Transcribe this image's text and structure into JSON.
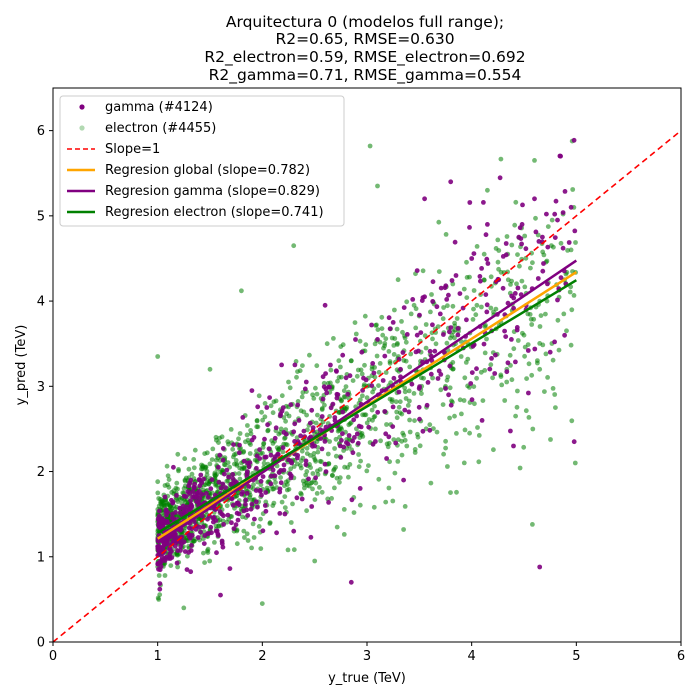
{
  "chart_data": {
    "type": "scatter",
    "title_lines": [
      "Arquitectura 0 (modelos full range);",
      "R2=0.65, RMSE=0.630",
      "R2_electron=0.59, RMSE_electron=0.692",
      "R2_gamma=0.71, RMSE_gamma=0.554"
    ],
    "xlabel": "y_true (TeV)",
    "ylabel": "y_pred (TeV)",
    "xlim": [
      0,
      6
    ],
    "ylim": [
      0,
      6.5
    ],
    "xticks": [
      "0",
      "1",
      "2",
      "3",
      "4",
      "5",
      "6"
    ],
    "yticks": [
      "0",
      "1",
      "2",
      "3",
      "4",
      "5",
      "6"
    ],
    "grid": false,
    "legend_position": "top-left",
    "series": [
      {
        "name": "gamma (#4124)",
        "kind": "scatter",
        "color": "#800080",
        "count": 4124,
        "alpha": 0.9
      },
      {
        "name": "electron (#4455)",
        "kind": "scatter",
        "color": "#008000",
        "count": 4455,
        "alpha": 0.3
      },
      {
        "name": "Slope=1",
        "kind": "line",
        "style": "dashed",
        "color": "#ff0000",
        "slope": 1,
        "intercept": 0,
        "x_range": [
          0,
          6
        ]
      },
      {
        "name": "Regresion global (slope=0.782)",
        "kind": "line",
        "color": "#ffa500",
        "slope": 0.782,
        "intercept": 0.43,
        "x_range": [
          1,
          5
        ]
      },
      {
        "name": "Regresion gamma (slope=0.829)",
        "kind": "line",
        "color": "#800080",
        "slope": 0.829,
        "intercept": 0.33,
        "x_range": [
          1,
          5
        ]
      },
      {
        "name": "Regresion electron (slope=0.741)",
        "kind": "line",
        "color": "#008000",
        "slope": 0.741,
        "intercept": 0.54,
        "x_range": [
          1,
          5
        ]
      }
    ],
    "scatter_sample": {
      "gamma": [
        [
          1.02,
          0.62
        ],
        [
          1.05,
          1.35
        ],
        [
          1.08,
          1.55
        ],
        [
          1.12,
          0.98
        ],
        [
          1.18,
          1.72
        ],
        [
          1.22,
          1.12
        ],
        [
          1.28,
          0.85
        ],
        [
          1.33,
          1.48
        ],
        [
          1.4,
          1.9
        ],
        [
          1.45,
          1.25
        ],
        [
          1.52,
          1.62
        ],
        [
          1.58,
          2.05
        ],
        [
          1.63,
          1.38
        ],
        [
          1.7,
          1.85
        ],
        [
          1.78,
          2.22
        ],
        [
          1.85,
          1.55
        ],
        [
          1.92,
          2.4
        ],
        [
          1.98,
          1.78
        ],
        [
          2.05,
          2.55
        ],
        [
          2.12,
          1.95
        ],
        [
          2.2,
          2.75
        ],
        [
          2.28,
          2.1
        ],
        [
          2.35,
          2.6
        ],
        [
          2.42,
          3.05
        ],
        [
          2.5,
          2.3
        ],
        [
          2.58,
          2.85
        ],
        [
          2.65,
          3.25
        ],
        [
          2.72,
          2.55
        ],
        [
          2.8,
          3.1
        ],
        [
          2.88,
          2.4
        ],
        [
          2.95,
          3.4
        ],
        [
          3.02,
          2.8
        ],
        [
          3.1,
          3.55
        ],
        [
          3.18,
          2.95
        ],
        [
          3.25,
          3.75
        ],
        [
          3.32,
          3.2
        ],
        [
          3.4,
          2.7
        ],
        [
          3.48,
          3.6
        ],
        [
          3.55,
          4.05
        ],
        [
          3.62,
          3.3
        ],
        [
          3.7,
          3.85
        ],
        [
          3.78,
          2.9
        ],
        [
          3.85,
          4.3
        ],
        [
          3.92,
          3.45
        ],
        [
          4.0,
          4.5
        ],
        [
          4.08,
          3.7
        ],
        [
          4.15,
          4.9
        ],
        [
          4.22,
          3.15
        ],
        [
          4.3,
          4.15
        ],
        [
          4.38,
          3.55
        ],
        [
          4.45,
          4.75
        ],
        [
          4.52,
          3.9
        ],
        [
          4.6,
          5.2
        ],
        [
          4.68,
          4.35
        ],
        [
          4.75,
          3.4
        ],
        [
          4.82,
          4.95
        ],
        [
          4.9,
          4.2
        ],
        [
          4.95,
          5.1
        ],
        [
          4.98,
          2.35
        ],
        [
          3.8,
          5.4
        ],
        [
          2.3,
          1.3
        ],
        [
          1.6,
          0.55
        ],
        [
          1.15,
          2.05
        ],
        [
          4.65,
          0.88
        ],
        [
          2.85,
          0.7
        ],
        [
          3.55,
          5.2
        ],
        [
          4.85,
          5.7
        ],
        [
          4.4,
          2.3
        ],
        [
          2.6,
          3.95
        ],
        [
          1.9,
          2.95
        ],
        [
          3.35,
          1.9
        ],
        [
          4.1,
          2.6
        ]
      ],
      "electron": [
        [
          1.01,
          0.5
        ],
        [
          1.04,
          1.6
        ],
        [
          1.07,
          0.78
        ],
        [
          1.1,
          1.95
        ],
        [
          1.14,
          1.3
        ],
        [
          1.19,
          0.88
        ],
        [
          1.24,
          1.75
        ],
        [
          1.3,
          1.1
        ],
        [
          1.36,
          2.25
        ],
        [
          1.42,
          1.45
        ],
        [
          1.48,
          1.05
        ],
        [
          1.55,
          1.95
        ],
        [
          1.6,
          1.6
        ],
        [
          1.67,
          2.35
        ],
        [
          1.73,
          1.3
        ],
        [
          1.8,
          2.1
        ],
        [
          1.88,
          1.7
        ],
        [
          1.95,
          2.6
        ],
        [
          2.02,
          2.15
        ],
        [
          2.1,
          1.6
        ],
        [
          2.18,
          2.5
        ],
        [
          2.25,
          3.05
        ],
        [
          2.32,
          2.2
        ],
        [
          2.4,
          1.85
        ],
        [
          2.48,
          2.9
        ],
        [
          2.55,
          2.45
        ],
        [
          2.62,
          3.5
        ],
        [
          2.7,
          2.05
        ],
        [
          2.78,
          2.75
        ],
        [
          2.85,
          3.3
        ],
        [
          2.92,
          2.2
        ],
        [
          3.0,
          3.0
        ],
        [
          3.08,
          2.5
        ],
        [
          3.15,
          3.6
        ],
        [
          3.22,
          2.85
        ],
        [
          3.3,
          3.35
        ],
        [
          3.38,
          2.3
        ],
        [
          3.45,
          3.95
        ],
        [
          3.52,
          3.1
        ],
        [
          3.6,
          2.55
        ],
        [
          3.68,
          3.7
        ],
        [
          3.75,
          3.0
        ],
        [
          3.82,
          4.2
        ],
        [
          3.9,
          3.35
        ],
        [
          3.98,
          2.45
        ],
        [
          4.05,
          3.95
        ],
        [
          4.12,
          4.55
        ],
        [
          4.2,
          3.1
        ],
        [
          4.28,
          3.75
        ],
        [
          4.35,
          4.25
        ],
        [
          4.42,
          2.65
        ],
        [
          4.5,
          3.6
        ],
        [
          4.58,
          4.45
        ],
        [
          4.65,
          3.2
        ],
        [
          4.72,
          4.0
        ],
        [
          4.8,
          2.75
        ],
        [
          4.88,
          3.85
        ],
        [
          4.95,
          4.6
        ],
        [
          4.99,
          2.1
        ],
        [
          3.03,
          5.82
        ],
        [
          3.1,
          5.35
        ],
        [
          2.3,
          4.65
        ],
        [
          1.8,
          4.12
        ],
        [
          1.0,
          3.35
        ],
        [
          4.6,
          5.65
        ],
        [
          4.58,
          1.38
        ],
        [
          3.35,
          1.32
        ],
        [
          2.5,
          0.95
        ],
        [
          1.5,
          3.2
        ],
        [
          4.15,
          5.3
        ],
        [
          1.25,
          0.4
        ],
        [
          2.0,
          0.45
        ]
      ]
    }
  }
}
